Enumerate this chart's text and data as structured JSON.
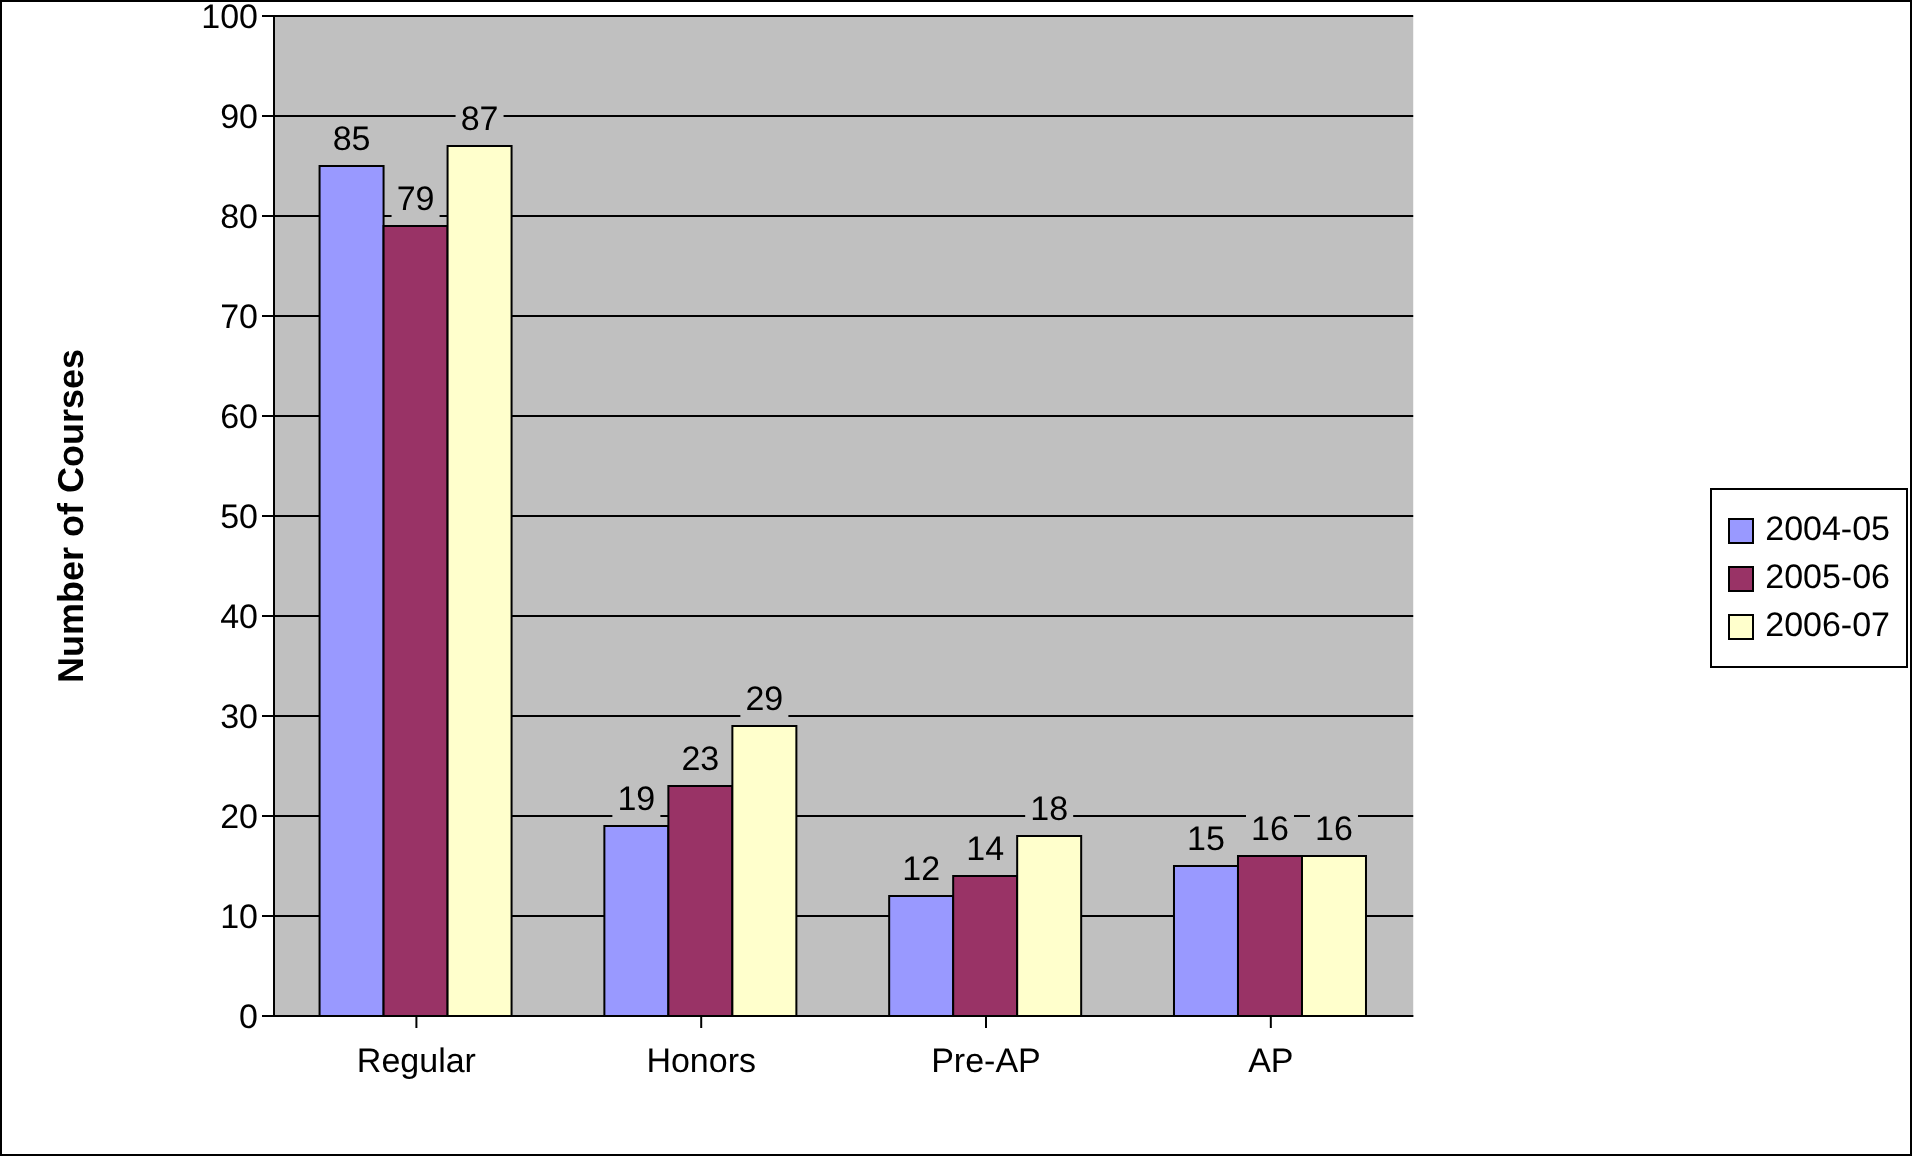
{
  "chart_data": {
    "type": "bar",
    "ylabel": "Number of Courses",
    "categories": [
      "Regular",
      "Honors",
      "Pre-AP",
      "AP"
    ],
    "series": [
      {
        "name": "2004-05",
        "color": "#9999ff",
        "values": [
          85,
          19,
          12,
          15
        ]
      },
      {
        "name": "2005-06",
        "color": "#993366",
        "values": [
          79,
          23,
          14,
          16
        ]
      },
      {
        "name": "2006-07",
        "color": "#ffffcc",
        "values": [
          87,
          29,
          18,
          16
        ]
      }
    ],
    "ylim": [
      0,
      100
    ],
    "yticks": [
      0,
      10,
      20,
      30,
      40,
      50,
      60,
      70,
      80,
      90,
      100
    ],
    "grid": "y",
    "legend": "right",
    "data_labels": true
  }
}
